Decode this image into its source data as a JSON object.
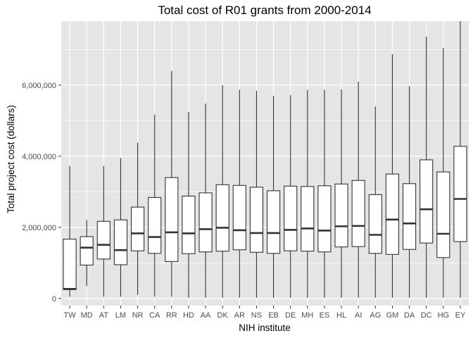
{
  "chart_data": {
    "type": "boxplot",
    "title": "Total cost of R01 grants from 2000-2014",
    "xlabel": "NIH institute",
    "ylabel": "Total project cost (dollars)",
    "ylim": [
      -200000,
      7800000
    ],
    "yticks": [
      0,
      2000000,
      4000000,
      6000000
    ],
    "ytick_labels": [
      "0",
      "2,000,000",
      "4,000,000",
      "6,000,000"
    ],
    "grid": true,
    "legend": "none",
    "colors": {
      "panel": "#e5e5e5",
      "grid_major": "#ffffff",
      "box_fill": "#ffffff",
      "box_line": "#333333",
      "tick_label": "#4d4d4d"
    },
    "categories": [
      "TW",
      "MD",
      "AT",
      "LM",
      "NR",
      "CA",
      "RR",
      "HD",
      "AA",
      "DK",
      "AR",
      "NS",
      "EB",
      "DE",
      "MH",
      "ES",
      "HL",
      "AI",
      "AG",
      "GM",
      "DA",
      "DC",
      "HG",
      "EY"
    ],
    "boxes": [
      {
        "min": 50000,
        "q1": 250000,
        "median": 270000,
        "q3": 1670000,
        "max": 3730000
      },
      {
        "min": 350000,
        "q1": 940000,
        "median": 1430000,
        "q3": 1740000,
        "max": 2210000
      },
      {
        "min": 50000,
        "q1": 1110000,
        "median": 1510000,
        "q3": 2170000,
        "max": 3730000
      },
      {
        "min": 50000,
        "q1": 950000,
        "median": 1360000,
        "q3": 2210000,
        "max": 3950000
      },
      {
        "min": 100000,
        "q1": 1340000,
        "median": 1830000,
        "q3": 2570000,
        "max": 4380000
      },
      {
        "min": 50000,
        "q1": 1270000,
        "median": 1730000,
        "q3": 2840000,
        "max": 5170000
      },
      {
        "min": 50000,
        "q1": 1040000,
        "median": 1860000,
        "q3": 3400000,
        "max": 6400000
      },
      {
        "min": 20000,
        "q1": 1260000,
        "median": 1830000,
        "q3": 2880000,
        "max": 5250000
      },
      {
        "min": 20000,
        "q1": 1310000,
        "median": 1950000,
        "q3": 2970000,
        "max": 5480000
      },
      {
        "min": 20000,
        "q1": 1330000,
        "median": 1990000,
        "q3": 3200000,
        "max": 6000000
      },
      {
        "min": 20000,
        "q1": 1370000,
        "median": 1920000,
        "q3": 3180000,
        "max": 5870000
      },
      {
        "min": 20000,
        "q1": 1300000,
        "median": 1840000,
        "q3": 3130000,
        "max": 5840000
      },
      {
        "min": 20000,
        "q1": 1270000,
        "median": 1840000,
        "q3": 3030000,
        "max": 5700000
      },
      {
        "min": 20000,
        "q1": 1340000,
        "median": 1930000,
        "q3": 3160000,
        "max": 5720000
      },
      {
        "min": 20000,
        "q1": 1330000,
        "median": 1970000,
        "q3": 3150000,
        "max": 5870000
      },
      {
        "min": 20000,
        "q1": 1310000,
        "median": 1910000,
        "q3": 3170000,
        "max": 5870000
      },
      {
        "min": 20000,
        "q1": 1450000,
        "median": 2030000,
        "q3": 3220000,
        "max": 5880000
      },
      {
        "min": 20000,
        "q1": 1460000,
        "median": 2040000,
        "q3": 3320000,
        "max": 6100000
      },
      {
        "min": 20000,
        "q1": 1270000,
        "median": 1790000,
        "q3": 2920000,
        "max": 5400000
      },
      {
        "min": 20000,
        "q1": 1240000,
        "median": 2220000,
        "q3": 3500000,
        "max": 6870000
      },
      {
        "min": 20000,
        "q1": 1380000,
        "median": 2110000,
        "q3": 3230000,
        "max": 5970000
      },
      {
        "min": 20000,
        "q1": 1560000,
        "median": 2510000,
        "q3": 3900000,
        "max": 7360000
      },
      {
        "min": 20000,
        "q1": 1150000,
        "median": 1820000,
        "q3": 3560000,
        "max": 7050000
      },
      {
        "min": 20000,
        "q1": 1600000,
        "median": 2800000,
        "q3": 4280000,
        "max": 7800000
      }
    ]
  }
}
